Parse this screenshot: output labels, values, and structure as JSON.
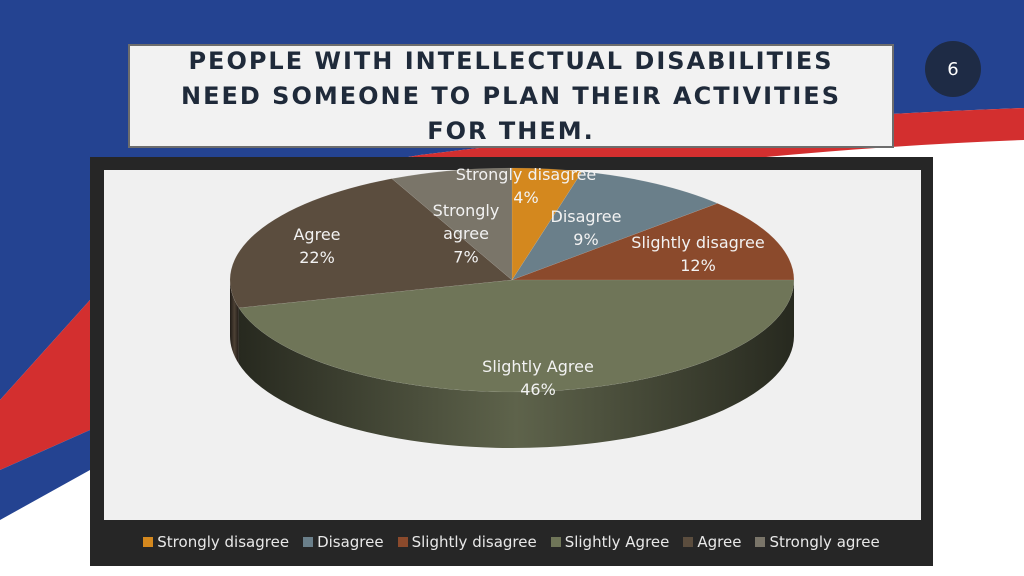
{
  "slide": {
    "title": "PEOPLE WITH INTELLECTUAL DISABILITIES NEED SOMEONE TO PLAN THEIR ACTIVITIES FOR THEM.",
    "page_number": "6"
  },
  "colors": {
    "background_blue": "#244391",
    "ribbon_red": "#d32f2f",
    "badge": "#1e2b45",
    "chart_panel": "#262626",
    "plot_area": "#f0f0f0"
  },
  "chart_data": {
    "type": "pie",
    "three_d": true,
    "title": "",
    "legend_position": "bottom",
    "slices": [
      {
        "name": "Strongly disagree",
        "value": 4,
        "label_lines": [
          "Strongly disagree",
          "4%"
        ],
        "color": "#d4881e"
      },
      {
        "name": "Disagree",
        "value": 9,
        "label_lines": [
          "Disagree",
          "9%"
        ],
        "color": "#6a7f8a"
      },
      {
        "name": "Slightly disagree",
        "value": 12,
        "label_lines": [
          "Slightly disagree",
          "12%"
        ],
        "color": "#8b4a2c"
      },
      {
        "name": "Slightly Agree",
        "value": 46,
        "label_lines": [
          "Slightly Agree",
          "46%"
        ],
        "color": "#6f7558"
      },
      {
        "name": "Agree",
        "value": 22,
        "label_lines": [
          "Agree",
          "22%"
        ],
        "color": "#5b4d3e"
      },
      {
        "name": "Strongly agree",
        "value": 7,
        "label_lines": [
          "Strongly",
          "agree",
          "7%"
        ],
        "color": "#7a7569"
      }
    ]
  }
}
